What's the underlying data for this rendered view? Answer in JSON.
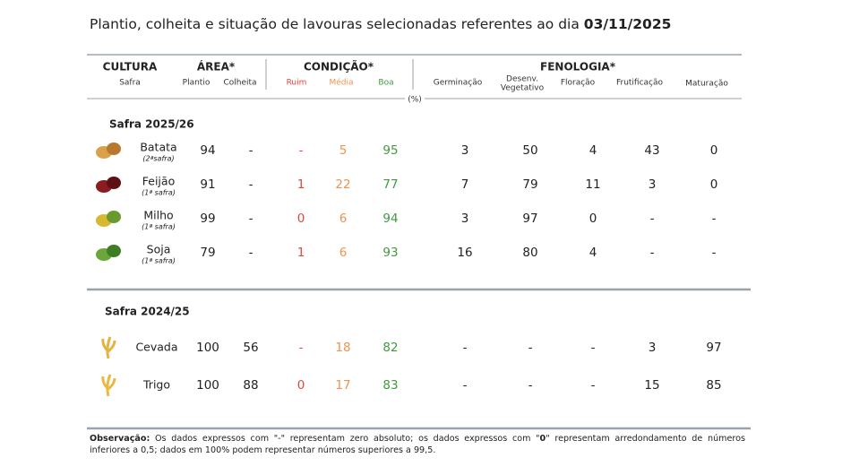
{
  "title": "Plantio, colheita e situação de lavouras selecionadas referentes ao dia",
  "title_date": "03/11/2025",
  "header": {
    "crop": "CULTURA",
    "crop_sub": "Safra",
    "area": "ÁREA*",
    "area_cols": [
      "Plantio",
      "Colheita"
    ],
    "condition": "CONDIÇÃO*",
    "condition_cols": [
      "Ruim",
      "Média",
      "Boa"
    ],
    "phenology": "FENOLOGIA*",
    "phenology_cols": [
      "Germinação",
      "Desenv.",
      "Vegetativo",
      "Floração",
      "Frutificação",
      "Maturação"
    ],
    "unit": "(%)"
  },
  "sections": [
    {
      "label": "Safra 2025/26",
      "rows": [
        {
          "crop": "Batata",
          "season": "(2ªsafra)",
          "cells": [
            94,
            "-",
            "-",
            5,
            95,
            3,
            50,
            4,
            43,
            0
          ]
        },
        {
          "crop": "Feijão",
          "season": "(1ª safra)",
          "cells": [
            91,
            "-",
            1,
            22,
            77,
            7,
            79,
            11,
            3,
            0
          ]
        },
        {
          "crop": "Milho",
          "season": "(1ª safra)",
          "cells": [
            99,
            "-",
            0,
            6,
            94,
            3,
            97,
            0,
            "-",
            "-"
          ]
        },
        {
          "crop": "Soja",
          "season": "(1ª safra)",
          "cells": [
            79,
            "-",
            1,
            6,
            93,
            16,
            80,
            4,
            "-",
            "-"
          ]
        }
      ]
    },
    {
      "label": "Safra 2024/25",
      "rows": [
        {
          "crop": "Cevada",
          "cells": [
            100,
            56,
            "-",
            18,
            82,
            "-",
            "-",
            "-",
            3,
            97
          ]
        },
        {
          "crop": "Trigo",
          "cells": [
            100,
            88,
            0,
            17,
            83,
            "-",
            "-",
            "-",
            15,
            85
          ]
        }
      ]
    }
  ],
  "note": {
    "label": "Observação:",
    "text_before": "Os dados expressos com \"-\" representam zero absoluto; os dados expressos com \"",
    "bold": "0",
    "text_after": "\" representam arredondamento de números inferiores a 0,5; dados em 100% podem representar números superiores a 99,5."
  }
}
